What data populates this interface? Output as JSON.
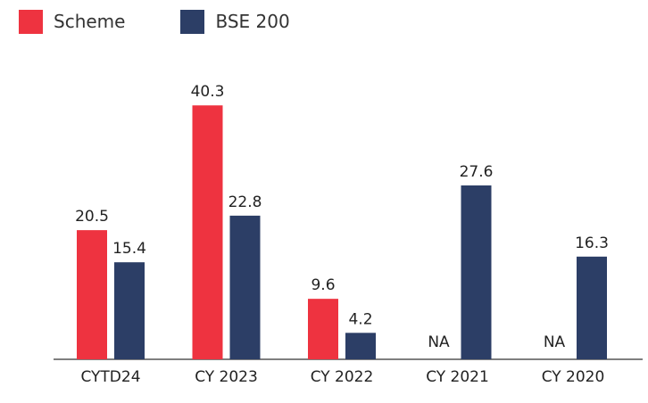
{
  "chart_data": {
    "type": "bar",
    "categories": [
      "CYTD24",
      "CY 2023",
      "CY 2022",
      "CY 2021",
      "CY 2020"
    ],
    "series": [
      {
        "name": "Scheme",
        "values": [
          20.5,
          40.3,
          9.6,
          null,
          null
        ],
        "labels": [
          "20.5",
          "40.3",
          "9.6",
          "NA",
          "NA"
        ],
        "color": "#ee3340"
      },
      {
        "name": "BSE 200",
        "values": [
          15.4,
          22.8,
          4.2,
          27.6,
          16.3
        ],
        "labels": [
          "15.4",
          "22.8",
          "4.2",
          "27.6",
          "16.3"
        ],
        "color": "#2c3e66"
      }
    ],
    "ylim": [
      0,
      45
    ],
    "grid": false,
    "legend_position": "top-left",
    "title": "",
    "xlabel": "",
    "ylabel": ""
  }
}
